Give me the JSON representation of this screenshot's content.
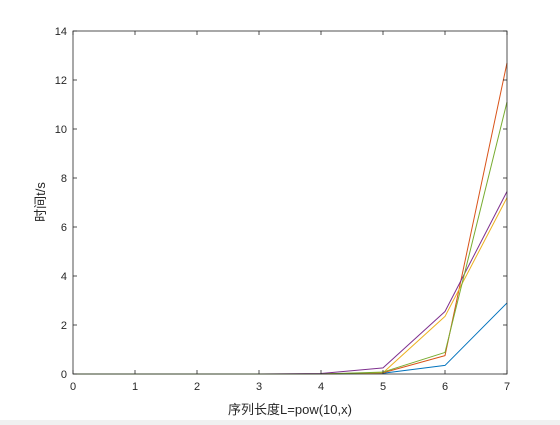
{
  "chart_data": {
    "type": "line",
    "title": "",
    "xlabel": "序列长度L=pow(10,x)",
    "ylabel": "时间t/s",
    "xlim": [
      0,
      7
    ],
    "ylim": [
      0,
      14
    ],
    "x_ticks": [
      0,
      1,
      2,
      3,
      4,
      5,
      6,
      7
    ],
    "y_ticks": [
      0,
      2,
      4,
      6,
      8,
      10,
      12,
      14
    ],
    "grid": false,
    "legend": "none",
    "x": [
      0,
      1,
      2,
      3,
      4,
      5,
      6,
      7
    ],
    "series": [
      {
        "color": "#0072BD",
        "values": [
          0,
          0,
          0,
          0,
          0,
          0.03,
          0.35,
          2.9
        ]
      },
      {
        "color": "#D95319",
        "values": [
          0,
          0,
          0,
          0,
          0,
          0.05,
          0.75,
          12.7
        ]
      },
      {
        "color": "#EDB120",
        "values": [
          0,
          0,
          0,
          0,
          0,
          0.05,
          2.35,
          7.2
        ]
      },
      {
        "color": "#7E2F8E",
        "values": [
          0,
          0,
          0,
          0,
          0.02,
          0.25,
          2.55,
          7.45
        ]
      },
      {
        "color": "#77AC30",
        "values": [
          0,
          0,
          0,
          0,
          0,
          0.08,
          0.88,
          11.1
        ]
      }
    ]
  }
}
